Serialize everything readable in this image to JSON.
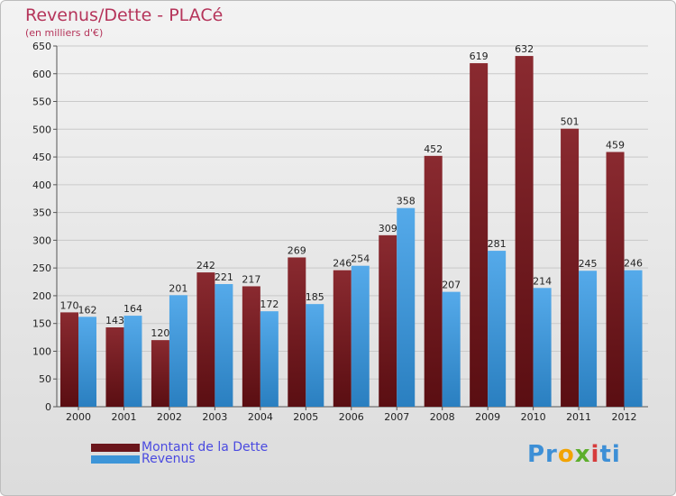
{
  "title": "Revenus/Dette - PLACé",
  "subtitle": "(en milliers d'€)",
  "logo": {
    "parts": [
      {
        "text": "Pr",
        "color": "#3d8fd6"
      },
      {
        "text": "o",
        "color": "#f2a300"
      },
      {
        "text": "x",
        "color": "#5dae2c"
      },
      {
        "text": "i",
        "color": "#d63c3c"
      },
      {
        "text": "ti",
        "color": "#3d8fd6"
      }
    ]
  },
  "chart_data": {
    "type": "bar",
    "categories": [
      "2000",
      "2001",
      "2002",
      "2003",
      "2004",
      "2005",
      "2006",
      "2007",
      "2008",
      "2009",
      "2010",
      "2011",
      "2012"
    ],
    "series": [
      {
        "name": "Montant de la Dette",
        "color": "#7a1e25",
        "values": [
          170,
          143,
          120,
          242,
          217,
          269,
          246,
          309,
          452,
          619,
          632,
          501,
          459
        ]
      },
      {
        "name": "Revenus",
        "color": "#3d95d8",
        "values": [
          162,
          164,
          201,
          221,
          172,
          185,
          254,
          358,
          207,
          281,
          214,
          245,
          246
        ]
      }
    ],
    "ylim": [
      0,
      650
    ],
    "yticks": [
      0,
      50,
      100,
      150,
      200,
      250,
      300,
      350,
      400,
      450,
      500,
      550,
      600,
      650
    ],
    "grid": true,
    "legend": "bottom-left"
  }
}
